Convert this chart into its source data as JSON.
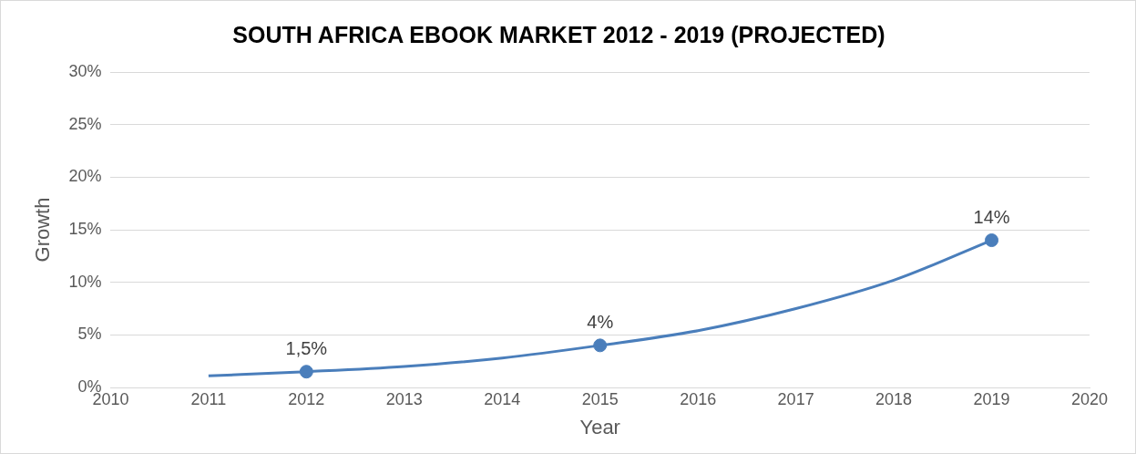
{
  "chart_data": {
    "type": "scatter",
    "title": "SOUTH AFRICA EBOOK MARKET 2012 - 2019 (PROJECTED)",
    "xlabel": "Year",
    "ylabel": "Growth",
    "xlim": [
      2010,
      2020
    ],
    "xticks": [
      2010,
      2011,
      2012,
      2013,
      2014,
      2015,
      2016,
      2017,
      2018,
      2019,
      2020
    ],
    "ylim": [
      0,
      30
    ],
    "yticks": [
      {
        "value": 0,
        "label": "0%"
      },
      {
        "value": 5,
        "label": "5%"
      },
      {
        "value": 10,
        "label": "10%"
      },
      {
        "value": 15,
        "label": "15%"
      },
      {
        "value": 20,
        "label": "20%"
      },
      {
        "value": 25,
        "label": "25%"
      },
      {
        "value": 30,
        "label": "30%"
      }
    ],
    "grid": "y",
    "legend": false,
    "marker": "circle",
    "series": [
      {
        "type": "line",
        "color": "#4a7ebb",
        "marker": "none",
        "x": [
          2011,
          2012,
          2013,
          2014,
          2015,
          2016,
          2017,
          2018,
          2019
        ],
        "values": [
          1.1,
          1.5,
          2.0,
          2.8,
          4.0,
          5.4,
          7.5,
          10.2,
          14.0
        ]
      },
      {
        "color": "#4a7ebb",
        "x": [
          2012,
          2015,
          2019
        ],
        "values": [
          1.5,
          4,
          14
        ],
        "value_labels": [
          "1,5%",
          "4%",
          "14%"
        ]
      }
    ]
  }
}
